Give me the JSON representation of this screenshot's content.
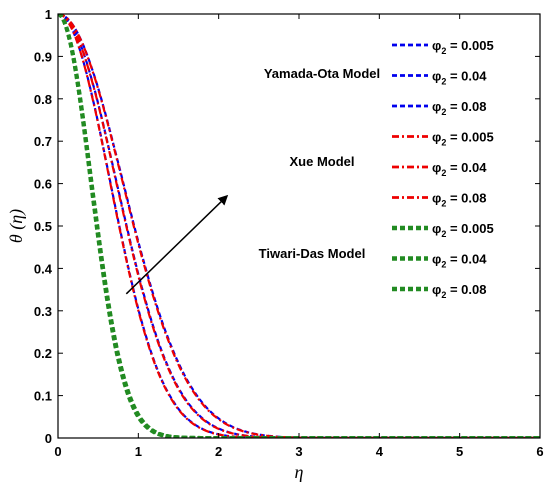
{
  "chart_data": {
    "type": "line",
    "title": "",
    "xlabel": "η",
    "ylabel": "θ (η)",
    "xlim": [
      0,
      6
    ],
    "ylim": [
      0,
      1
    ],
    "x_ticks": [
      "0",
      "1",
      "2",
      "3",
      "4",
      "5",
      "6"
    ],
    "y_ticks": [
      "0",
      "0.1",
      "0.2",
      "0.3",
      "0.4",
      "0.5",
      "0.6",
      "0.7",
      "0.8",
      "0.9",
      "1"
    ],
    "grid": false,
    "legend_position": "top-right",
    "phi_symbol": "φ",
    "phi_subscript": "2",
    "model_labels": [
      "Yamada-Ota Model",
      "Xue Model",
      "Tiwari-Das Model"
    ],
    "series": [
      {
        "model": "Yamada-Ota Model",
        "phi2_value": "0.005",
        "color": "#0000ee",
        "style": "dash",
        "decay": 0.77
      },
      {
        "model": "Yamada-Ota Model",
        "phi2_value": "0.04",
        "color": "#0000ee",
        "style": "dash",
        "decay": 0.95
      },
      {
        "model": "Yamada-Ota Model",
        "phi2_value": "0.08",
        "color": "#0000ee",
        "style": "dash",
        "decay": 1.19
      },
      {
        "model": "Xue Model",
        "phi2_value": "0.005",
        "color": "#ee0000",
        "style": "dashdot",
        "decay": 0.78
      },
      {
        "model": "Xue Model",
        "phi2_value": "0.04",
        "color": "#ee0000",
        "style": "dashdot",
        "decay": 0.96
      },
      {
        "model": "Xue Model",
        "phi2_value": "0.08",
        "color": "#ee0000",
        "style": "dashdot",
        "decay": 1.2
      },
      {
        "model": "Tiwari-Das Model",
        "phi2_value": "0.005",
        "color": "#228b22",
        "style": "thickdash",
        "decay": 2.9
      },
      {
        "model": "Tiwari-Das Model",
        "phi2_value": "0.04",
        "color": "#228b22",
        "style": "thickdash",
        "decay": 2.95
      },
      {
        "model": "Tiwari-Das Model",
        "phi2_value": "0.08",
        "color": "#228b22",
        "style": "thickdash",
        "decay": 3.0
      }
    ],
    "curve_model": "exp(-decay * x^2)",
    "arrow": {
      "from": [
        0.85,
        0.34
      ],
      "to": [
        2.1,
        0.57
      ]
    }
  }
}
